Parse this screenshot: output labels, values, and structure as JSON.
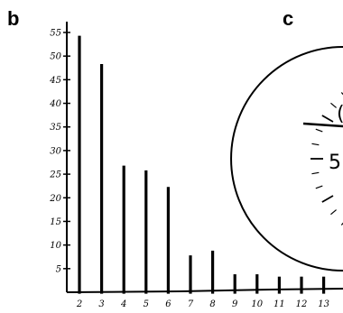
{
  "panels": {
    "left_letter": "b",
    "right_letter": "c"
  },
  "chart_data": {
    "type": "bar",
    "title": "",
    "xlabel": "",
    "ylabel": "",
    "categories": [
      "2",
      "3",
      "4",
      "5",
      "6",
      "7",
      "8",
      "9",
      "10",
      "11",
      "12",
      "13"
    ],
    "values": [
      54,
      48,
      26.5,
      25.5,
      22,
      7.5,
      8.5,
      3.5,
      3.5,
      3,
      3,
      3
    ],
    "ylim": [
      0,
      55
    ],
    "yticks": [
      "5",
      "10",
      "15",
      "20",
      "25",
      "30",
      "35",
      "40",
      "45",
      "50",
      "55"
    ],
    "grid": false,
    "legend": "none"
  },
  "dial": {
    "partial_labels": [
      "5",
      "("
    ]
  }
}
